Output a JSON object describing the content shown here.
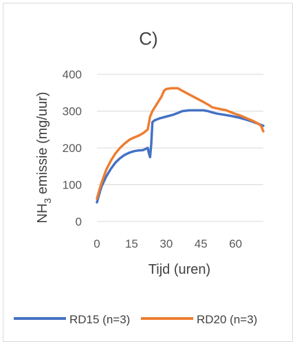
{
  "chart_data": {
    "type": "line",
    "title": "C)",
    "xlabel": "Tijd (uren)",
    "ylabel_main": "NH",
    "ylabel_sub": "3",
    "ylabel_rest": " emissie (mg/uur)",
    "xlim": [
      0,
      72
    ],
    "ylim": [
      0,
      400
    ],
    "xticks": [
      0,
      15,
      30,
      45,
      60
    ],
    "yticks": [
      0,
      100,
      200,
      300,
      400
    ],
    "grid": "horizontal",
    "legend_position": "bottom",
    "series": [
      {
        "name": "RD15 (n=3)",
        "color": "#4472c4",
        "points": [
          [
            0,
            52
          ],
          [
            1,
            75
          ],
          [
            2,
            95
          ],
          [
            4,
            122
          ],
          [
            6,
            143
          ],
          [
            8,
            160
          ],
          [
            10,
            172
          ],
          [
            12,
            181
          ],
          [
            14,
            187
          ],
          [
            16,
            191
          ],
          [
            18,
            193
          ],
          [
            20,
            194
          ],
          [
            21,
            197
          ],
          [
            22,
            200
          ],
          [
            22.5,
            185
          ],
          [
            23,
            175
          ],
          [
            23.5,
            210
          ],
          [
            24,
            270
          ],
          [
            25,
            275
          ],
          [
            27,
            280
          ],
          [
            30,
            285
          ],
          [
            33,
            290
          ],
          [
            35,
            295
          ],
          [
            37,
            300
          ],
          [
            40,
            302
          ],
          [
            43,
            302
          ],
          [
            46,
            302
          ],
          [
            48,
            300
          ],
          [
            50,
            296
          ],
          [
            52,
            293
          ],
          [
            55,
            290
          ],
          [
            58,
            287
          ],
          [
            61,
            283
          ],
          [
            64,
            278
          ],
          [
            67,
            272
          ],
          [
            70,
            265
          ],
          [
            72,
            260
          ]
        ]
      },
      {
        "name": "RD20 (n=3)",
        "color": "#ed7d31",
        "points": [
          [
            0,
            62
          ],
          [
            1,
            85
          ],
          [
            2,
            105
          ],
          [
            4,
            140
          ],
          [
            6,
            165
          ],
          [
            8,
            185
          ],
          [
            10,
            200
          ],
          [
            12,
            212
          ],
          [
            14,
            222
          ],
          [
            16,
            228
          ],
          [
            18,
            233
          ],
          [
            20,
            240
          ],
          [
            22,
            250
          ],
          [
            23,
            285
          ],
          [
            24,
            300
          ],
          [
            26,
            320
          ],
          [
            28,
            340
          ],
          [
            29,
            355
          ],
          [
            30,
            360
          ],
          [
            32,
            362
          ],
          [
            35,
            362
          ],
          [
            37,
            355
          ],
          [
            40,
            345
          ],
          [
            43,
            335
          ],
          [
            46,
            325
          ],
          [
            48,
            318
          ],
          [
            50,
            310
          ],
          [
            53,
            306
          ],
          [
            56,
            302
          ],
          [
            58,
            297
          ],
          [
            60,
            292
          ],
          [
            62,
            288
          ],
          [
            65,
            280
          ],
          [
            68,
            272
          ],
          [
            70,
            265
          ],
          [
            71,
            260
          ],
          [
            72,
            245
          ]
        ]
      }
    ]
  }
}
